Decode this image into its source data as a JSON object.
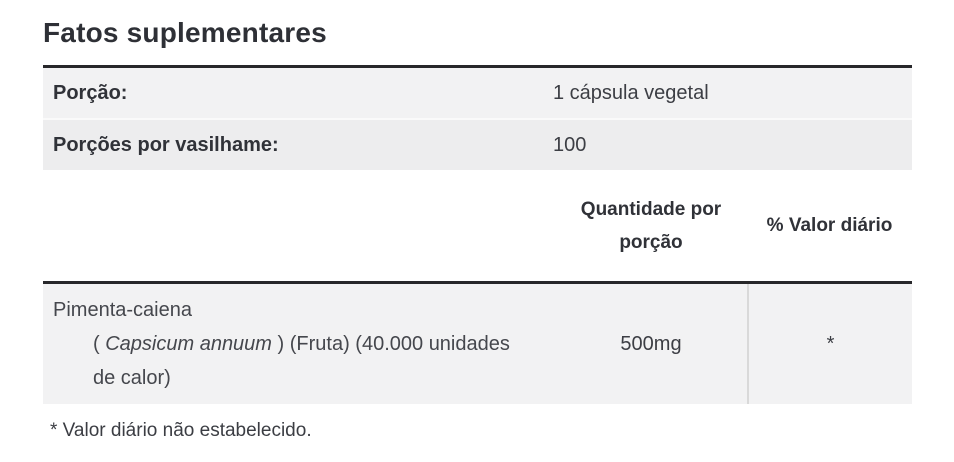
{
  "page": {
    "title": "Fatos suplementares"
  },
  "serving_info": {
    "rows": [
      {
        "label": "Porção:",
        "value": "1 cápsula vegetal"
      },
      {
        "label": "Porções por vasilhame:",
        "value": "100"
      }
    ]
  },
  "nutrition_table": {
    "headers": {
      "amount_line1": "Quantidade por",
      "amount_line2": "porção",
      "daily_value": "% Valor diário"
    },
    "rows": [
      {
        "name": "Pimenta-caiena",
        "detail_prefix": "( ",
        "species": "Capsicum annuum",
        "detail_suffix": " ) (Fruta) (40.000 unidades de calor)",
        "amount": "500mg",
        "daily_value": "*"
      }
    ]
  },
  "footnote": "* Valor diário não estabelecido.",
  "colors": {
    "heavy_border": "#27272a",
    "row_background": "#f2f2f3",
    "column_divider": "#d9d9d9"
  }
}
